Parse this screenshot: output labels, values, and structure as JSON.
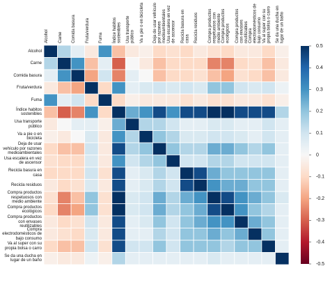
{
  "chart_data": {
    "type": "heatmap",
    "categories": [
      "Alcohol",
      "Carne",
      "Comida basura",
      "Fruta/verdura",
      "Fuma",
      "Índice habitos sostenibles",
      "Usa transporte público",
      "Va a pie o en bicicleta",
      "Deja de usar vehículo por razones medioambientales",
      "Usa escalera en vez de ascensor",
      "Recicla basura en casa",
      "Recicla residuos",
      "Compra productos respetuosos con medio ambiente",
      "Compra productos ecológicos",
      "Compra productos con envases reutilizables",
      "Compra electrodomésticos de bajo consumo",
      "Va al super con su propia bolsa o carro",
      "Se da una ducha en lugar de un baño"
    ],
    "values": [
      [
        1,
        0.15,
        0.05,
        -0.05,
        0.3,
        -0.15,
        -0.05,
        -0.03,
        -0.1,
        -0.08,
        -0.1,
        -0.05,
        -0.08,
        -0.1,
        -0.05,
        -0.05,
        -0.1,
        -0.03
      ],
      [
        0.15,
        1,
        0.3,
        -0.15,
        0.05,
        -0.3,
        0,
        -0.05,
        -0.15,
        -0.1,
        -0.1,
        -0.1,
        -0.25,
        -0.25,
        -0.1,
        -0.08,
        -0.15,
        -0.05
      ],
      [
        0.05,
        0.3,
        1,
        -0.2,
        0.1,
        -0.25,
        0.05,
        0,
        -0.15,
        -0.1,
        -0.1,
        -0.08,
        -0.15,
        -0.2,
        -0.08,
        -0.1,
        -0.15,
        -0.05
      ],
      [
        -0.05,
        -0.15,
        -0.2,
        1,
        -0.1,
        0.3,
        0.05,
        0.08,
        0.1,
        0.08,
        0.1,
        0.08,
        0.2,
        0.2,
        0.1,
        0.08,
        0.1,
        0.03
      ],
      [
        0.3,
        0.05,
        0.1,
        -0.1,
        1,
        -0.1,
        -0.03,
        -0.05,
        -0.05,
        -0.05,
        -0.08,
        -0.05,
        -0.08,
        -0.08,
        -0.05,
        -0.05,
        -0.08,
        -0.03
      ],
      [
        -0.15,
        -0.3,
        -0.25,
        0.3,
        -0.1,
        1,
        0.25,
        0.3,
        0.45,
        0.3,
        0.45,
        0.45,
        0.5,
        0.5,
        0.45,
        0.45,
        0.45,
        0.15
      ],
      [
        -0.05,
        0,
        0.05,
        0.05,
        -0.03,
        0.25,
        1,
        0.15,
        0.15,
        0.1,
        0.05,
        0.05,
        0.08,
        0.08,
        0.05,
        0.05,
        0.1,
        0.05
      ],
      [
        -0.03,
        -0.05,
        0,
        0.08,
        -0.05,
        0.3,
        0.15,
        1,
        0.2,
        0.15,
        0.08,
        0.08,
        0.1,
        0.1,
        0.08,
        0.05,
        0.1,
        0.05
      ],
      [
        -0.1,
        -0.15,
        -0.15,
        0.1,
        -0.05,
        0.45,
        0.15,
        0.2,
        1,
        0.2,
        0.15,
        0.15,
        0.25,
        0.25,
        0.2,
        0.15,
        0.2,
        0.05
      ],
      [
        -0.08,
        -0.1,
        -0.1,
        0.08,
        -0.05,
        0.3,
        0.1,
        0.15,
        0.2,
        1,
        0.1,
        0.1,
        0.15,
        0.15,
        0.1,
        0.1,
        0.1,
        0.05
      ],
      [
        -0.1,
        -0.1,
        -0.1,
        0.1,
        -0.08,
        0.45,
        0.05,
        0.08,
        0.15,
        0.1,
        1,
        0.45,
        0.25,
        0.2,
        0.2,
        0.2,
        0.2,
        0.05
      ],
      [
        -0.05,
        -0.1,
        -0.08,
        0.08,
        -0.05,
        0.45,
        0.05,
        0.08,
        0.15,
        0.1,
        0.45,
        1,
        0.3,
        0.25,
        0.25,
        0.2,
        0.2,
        0.05
      ],
      [
        -0.08,
        -0.25,
        -0.15,
        0.2,
        -0.08,
        0.5,
        0.08,
        0.1,
        0.25,
        0.15,
        0.25,
        0.3,
        1,
        0.45,
        0.3,
        0.25,
        0.2,
        0.08
      ],
      [
        -0.1,
        -0.25,
        -0.2,
        0.2,
        -0.08,
        0.5,
        0.08,
        0.1,
        0.25,
        0.15,
        0.2,
        0.25,
        0.45,
        1,
        0.3,
        0.2,
        0.15,
        0.05
      ],
      [
        -0.05,
        -0.1,
        -0.08,
        0.1,
        -0.05,
        0.45,
        0.05,
        0.08,
        0.2,
        0.1,
        0.2,
        0.25,
        0.3,
        0.3,
        1,
        0.25,
        0.2,
        0.05
      ],
      [
        -0.05,
        -0.08,
        -0.1,
        0.08,
        -0.05,
        0.45,
        0.05,
        0.05,
        0.15,
        0.1,
        0.2,
        0.2,
        0.25,
        0.2,
        0.25,
        1,
        0.2,
        0.05
      ],
      [
        -0.1,
        -0.15,
        -0.15,
        0.1,
        -0.08,
        0.45,
        0.1,
        0.1,
        0.2,
        0.1,
        0.2,
        0.2,
        0.2,
        0.15,
        0.2,
        0.2,
        1,
        0.05
      ],
      [
        -0.03,
        -0.05,
        -0.05,
        0.03,
        -0.03,
        0.15,
        0.05,
        0.05,
        0.05,
        0.05,
        0.05,
        0.05,
        0.08,
        0.05,
        0.05,
        0.05,
        0.05,
        1
      ]
    ],
    "colormap": "RdBu",
    "zlim": [
      -0.5,
      0.5
    ],
    "colorbar_ticks": [
      0.5,
      0.4,
      0.3,
      0.2,
      0.1,
      0,
      -0.1,
      -0.2,
      -0.3,
      -0.4,
      -0.5
    ]
  }
}
